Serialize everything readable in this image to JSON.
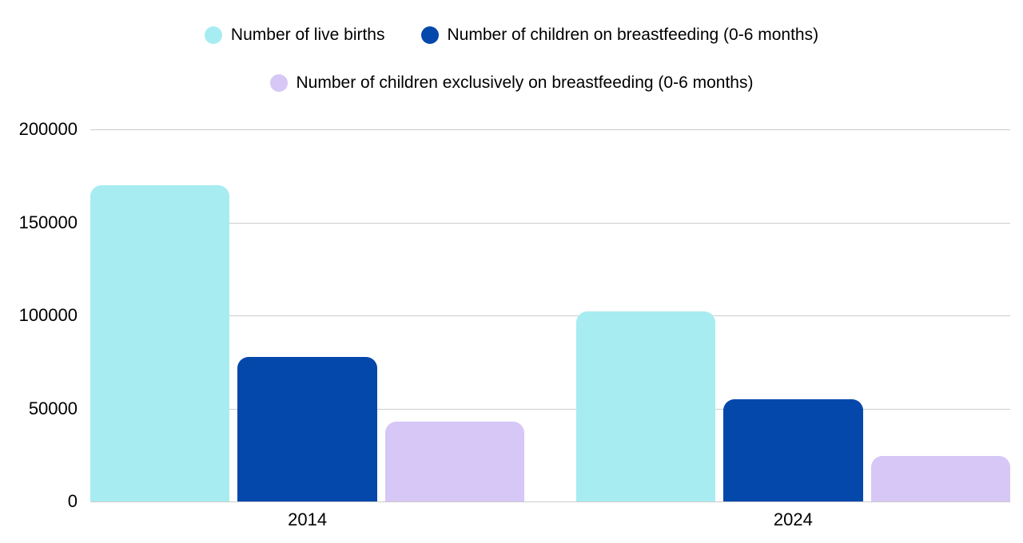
{
  "chart_data": {
    "type": "bar",
    "title": "",
    "xlabel": "",
    "ylabel": "",
    "categories": [
      "2014",
      "2024"
    ],
    "series": [
      {
        "name": "Number of live births",
        "color": "#a7ecf0",
        "values": [
          170000,
          102000
        ]
      },
      {
        "name": "Number of children on breastfeeding (0-6 months)",
        "color": "#0548ab",
        "values": [
          77500,
          55000
        ]
      },
      {
        "name": "Number of children exclusively on breastfeeding (0-6 months)",
        "color": "#d6c7f6",
        "values": [
          43000,
          24500
        ]
      }
    ],
    "ylim": [
      0,
      200000
    ],
    "yticks": [
      0,
      50000,
      100000,
      150000,
      200000
    ],
    "ytick_labels": [
      "0",
      "50000",
      "100000",
      "150000",
      "200000"
    ],
    "grid": true,
    "gridline_color": "#cccccc",
    "legend_position": "top",
    "legend_rows": [
      [
        0,
        1
      ],
      [
        2
      ]
    ],
    "text_color": "#000000",
    "background_color": "#ffffff"
  }
}
